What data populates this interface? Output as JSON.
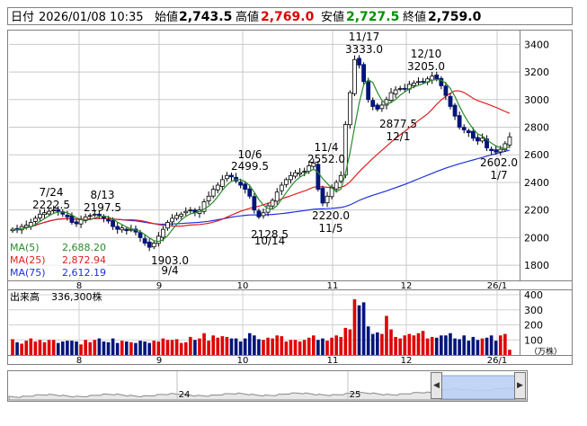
{
  "header": {
    "date_label": "日付",
    "datetime": "2026/01/08 10:35",
    "open_label": "始値",
    "open": "2,743.5",
    "high_label": "高値",
    "high": "2,769.0",
    "low_label": "安値",
    "low": "2,727.5",
    "close_label": "終値",
    "close": "2,759.0"
  },
  "colors": {
    "high": "#e00000",
    "low": "#009000",
    "candle": "#00147a",
    "ma5": "#2a8a2a",
    "ma25": "#e02020",
    "ma75": "#2030e0",
    "vol_up": "#e00000",
    "vol_down": "#00147a"
  },
  "chart_data": [
    {
      "type": "candlestick",
      "title": "",
      "x_ticks": [
        "8",
        "9",
        "10",
        "11",
        "12",
        "26/1"
      ],
      "y_ticks": [
        1800,
        2000,
        2200,
        2400,
        2600,
        2800,
        3000,
        3200,
        3400
      ],
      "ylim": [
        1690,
        3500
      ],
      "grid": true,
      "legend_position": "bottom-left",
      "legend": [
        {
          "name": "MA(5)",
          "value": "2,688.20",
          "color": "#2a8a2a"
        },
        {
          "name": "MA(25)",
          "value": "2,872.94",
          "color": "#e02020"
        },
        {
          "name": "MA(75)",
          "value": "2,612.19",
          "color": "#2030e0"
        }
      ],
      "annotations": [
        {
          "date": "7/24",
          "value": "2222.5",
          "kind": "high"
        },
        {
          "date": "8/13",
          "value": "2197.5",
          "kind": "high"
        },
        {
          "date": "9/4",
          "value": "1903.0",
          "kind": "low"
        },
        {
          "date": "10/6",
          "value": "2499.5",
          "kind": "high"
        },
        {
          "date": "10/14",
          "value": "2128.5",
          "kind": "low"
        },
        {
          "date": "11/4",
          "value": "2552.0",
          "kind": "high"
        },
        {
          "date": "11/5",
          "value": "2220.0",
          "kind": "low"
        },
        {
          "date": "11/17",
          "value": "3333.0",
          "kind": "high"
        },
        {
          "date": "12/10",
          "value": "3205.0",
          "kind": "high"
        },
        {
          "date": "12/1",
          "value": "2877.5",
          "kind": "low"
        },
        {
          "date": "1/7",
          "value": "2602.0",
          "kind": "low"
        }
      ],
      "price_points_close": [
        2060,
        2055,
        2080,
        2090,
        2110,
        2140,
        2170,
        2180,
        2190,
        2200,
        2190,
        2170,
        2150,
        2110,
        2100,
        2130,
        2150,
        2160,
        2170,
        2160,
        2140,
        2120,
        2080,
        2060,
        2070,
        2050,
        2060,
        2040,
        2000,
        1960,
        1930,
        1960,
        2010,
        2060,
        2110,
        2140,
        2160,
        2170,
        2190,
        2200,
        2180,
        2200,
        2260,
        2300,
        2350,
        2380,
        2420,
        2450,
        2440,
        2410,
        2380,
        2350,
        2300,
        2200,
        2150,
        2180,
        2230,
        2270,
        2330,
        2380,
        2420,
        2450,
        2470,
        2470,
        2480,
        2520,
        2540,
        2350,
        2250,
        2300,
        2360,
        2400,
        2450,
        2820,
        3050,
        3290,
        3250,
        3130,
        3000,
        2950,
        2930,
        2960,
        3000,
        3050,
        3070,
        3080,
        3080,
        3110,
        3120,
        3130,
        3130,
        3150,
        3170,
        3150,
        3100,
        3030,
        2950,
        2880,
        2800,
        2780,
        2760,
        2720,
        2700,
        2720,
        2650,
        2630,
        2620,
        2640,
        2680,
        2730
      ]
    },
    {
      "type": "bar",
      "title": "出来高",
      "summary_value": "336,300株",
      "unit": "（万株）",
      "y_ticks": [
        100,
        200,
        300,
        400
      ],
      "ylim": [
        0,
        430
      ],
      "x_ticks": [
        "8",
        "9",
        "10",
        "11",
        "12",
        "26/1"
      ],
      "values": [
        105,
        85,
        75,
        95,
        110,
        90,
        100,
        85,
        100,
        100,
        80,
        90,
        95,
        95,
        90,
        70,
        100,
        85,
        100,
        110,
        90,
        85,
        110,
        80,
        95,
        90,
        85,
        80,
        95,
        90,
        80,
        95,
        90,
        110,
        100,
        100,
        105,
        80,
        85,
        120,
        100,
        110,
        145,
        95,
        130,
        115,
        125,
        120,
        110,
        110,
        90,
        110,
        145,
        130,
        105,
        100,
        115,
        110,
        130,
        125,
        90,
        100,
        100,
        90,
        100,
        115,
        130,
        100,
        110,
        95,
        115,
        130,
        120,
        180,
        170,
        370,
        330,
        350,
        190,
        140,
        150,
        140,
        260,
        170,
        120,
        110,
        130,
        140,
        130,
        145,
        160,
        110,
        120,
        115,
        130,
        130,
        145,
        110,
        105,
        130,
        95,
        120,
        100,
        110,
        115,
        130,
        95,
        130,
        140,
        35
      ]
    },
    {
      "type": "area",
      "x_ticks": [
        "24",
        "25"
      ]
    }
  ]
}
